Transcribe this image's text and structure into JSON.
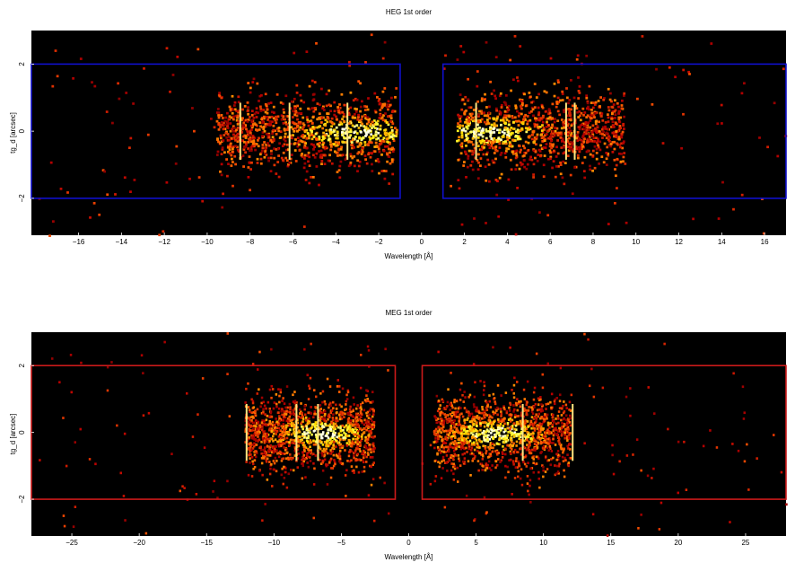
{
  "chart_data": [
    {
      "type": "heatmap",
      "title": "HEG 1st order",
      "xlabel": "Wavelength [Å]",
      "ylabel": "tg_d [arcsec]",
      "xlim": [
        -18.2,
        17.0
      ],
      "ylim": [
        -3.1,
        3.0
      ],
      "xticks": [
        -16,
        -14,
        -12,
        -10,
        -8,
        -6,
        -4,
        -2,
        0,
        2,
        4,
        6,
        8,
        10,
        12,
        14,
        16
      ],
      "yticks": [
        -2,
        0,
        2
      ],
      "grid": false,
      "colormap": "hot",
      "background": "#000000",
      "region_color": "#1010cc",
      "regions": [
        {
          "x": [
            -18.2,
            -1.0
          ],
          "y": [
            -2.0,
            2.0
          ]
        },
        {
          "x": [
            1.0,
            17.0
          ],
          "y": [
            -2.0,
            2.0
          ]
        }
      ],
      "dense_bands": [
        {
          "x": [
            -9.6,
            -1.2
          ],
          "peak": -3.0
        },
        {
          "x": [
            1.6,
            9.4
          ],
          "peak": 3.0
        }
      ],
      "bright_lines": [
        -8.5,
        -6.2,
        -3.5,
        2.5,
        6.7,
        7.1
      ]
    },
    {
      "type": "heatmap",
      "title": "MEG 1st order",
      "xlabel": "Wavelength [Å]",
      "ylabel": "tg_d [arcsec]",
      "xlim": [
        -28.0,
        28.0
      ],
      "ylim": [
        -3.1,
        3.0
      ],
      "xticks": [
        -25,
        -20,
        -15,
        -10,
        -5,
        0,
        5,
        10,
        15,
        20,
        25
      ],
      "yticks": [
        -2,
        0,
        2
      ],
      "grid": false,
      "colormap": "hot",
      "background": "#000000",
      "region_color": "#cc1a1a",
      "regions": [
        {
          "x": [
            -28.0,
            -1.0
          ],
          "y": [
            -2.0,
            2.0
          ]
        },
        {
          "x": [
            1.0,
            28.0
          ],
          "y": [
            -2.0,
            2.0
          ]
        }
      ],
      "dense_bands": [
        {
          "x": [
            -12.2,
            -2.6
          ],
          "peak": -6.5
        },
        {
          "x": [
            1.8,
            12.0
          ],
          "peak": 6.5
        }
      ],
      "bright_lines": [
        -12.1,
        -8.4,
        -6.8,
        8.4,
        12.1
      ]
    }
  ]
}
